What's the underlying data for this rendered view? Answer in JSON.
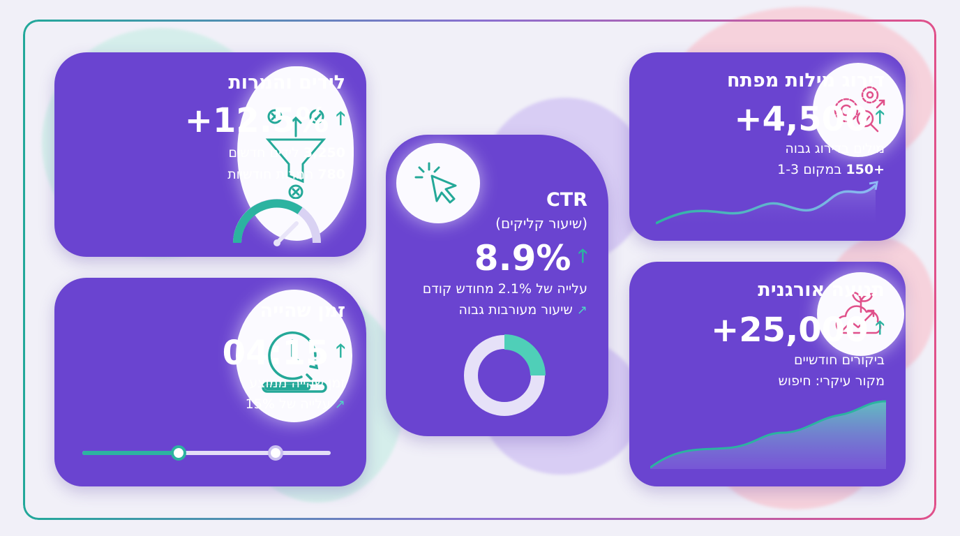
{
  "colors": {
    "card": "#6a44d0",
    "accent": "#2cb3a0",
    "icon": "#e0508a",
    "background": "#f1f0f8"
  },
  "leads": {
    "title": "לידים והמרות",
    "value": "+12.5%",
    "trend_icon": "arrow-up-icon",
    "line1_num": "3,250",
    "line1_text": "לידים חדשים",
    "line2_num": "780",
    "line2_text": "המרות חודשיות",
    "icon": "funnel-icon",
    "gauge_level": 0.8
  },
  "time": {
    "title": "זמן שהייה",
    "value": "04:15",
    "trend_icon": "arrow-up-icon",
    "line1": "זמן שהייה ממוצע",
    "line2": "עלייה של 15%",
    "icon": "clock-icon",
    "progress": 0.75,
    "slider": [
      0.4,
      0.77
    ]
  },
  "ctr": {
    "title": "CTR",
    "subtitle": "(שיעור קליקים)",
    "value": "8.9%",
    "trend_icon": "arrow-up-icon",
    "line1": "עלייה של 2.1% מחודש קודם",
    "line2": "שיעור מעורבות גבוה",
    "icon": "cursor-click-icon",
    "donut_fraction": 0.18
  },
  "keywords": {
    "title": "דירוג מילות מפתח",
    "value": "+4,500",
    "trend_icon": "arrow-up-icon",
    "line1": "מילים בדירוג גבוה",
    "line2_num": "+150",
    "line2_text": "במקום 1-3",
    "icon": "gears-icon"
  },
  "organic": {
    "title": "תנועה אורגנית",
    "value": "+25,000",
    "trend_icon": "arrow-up-icon",
    "line1": "ביקורים חודשיים",
    "line2": "מקור עיקרי: חיפוש",
    "icon": "plant-growth-icon"
  }
}
